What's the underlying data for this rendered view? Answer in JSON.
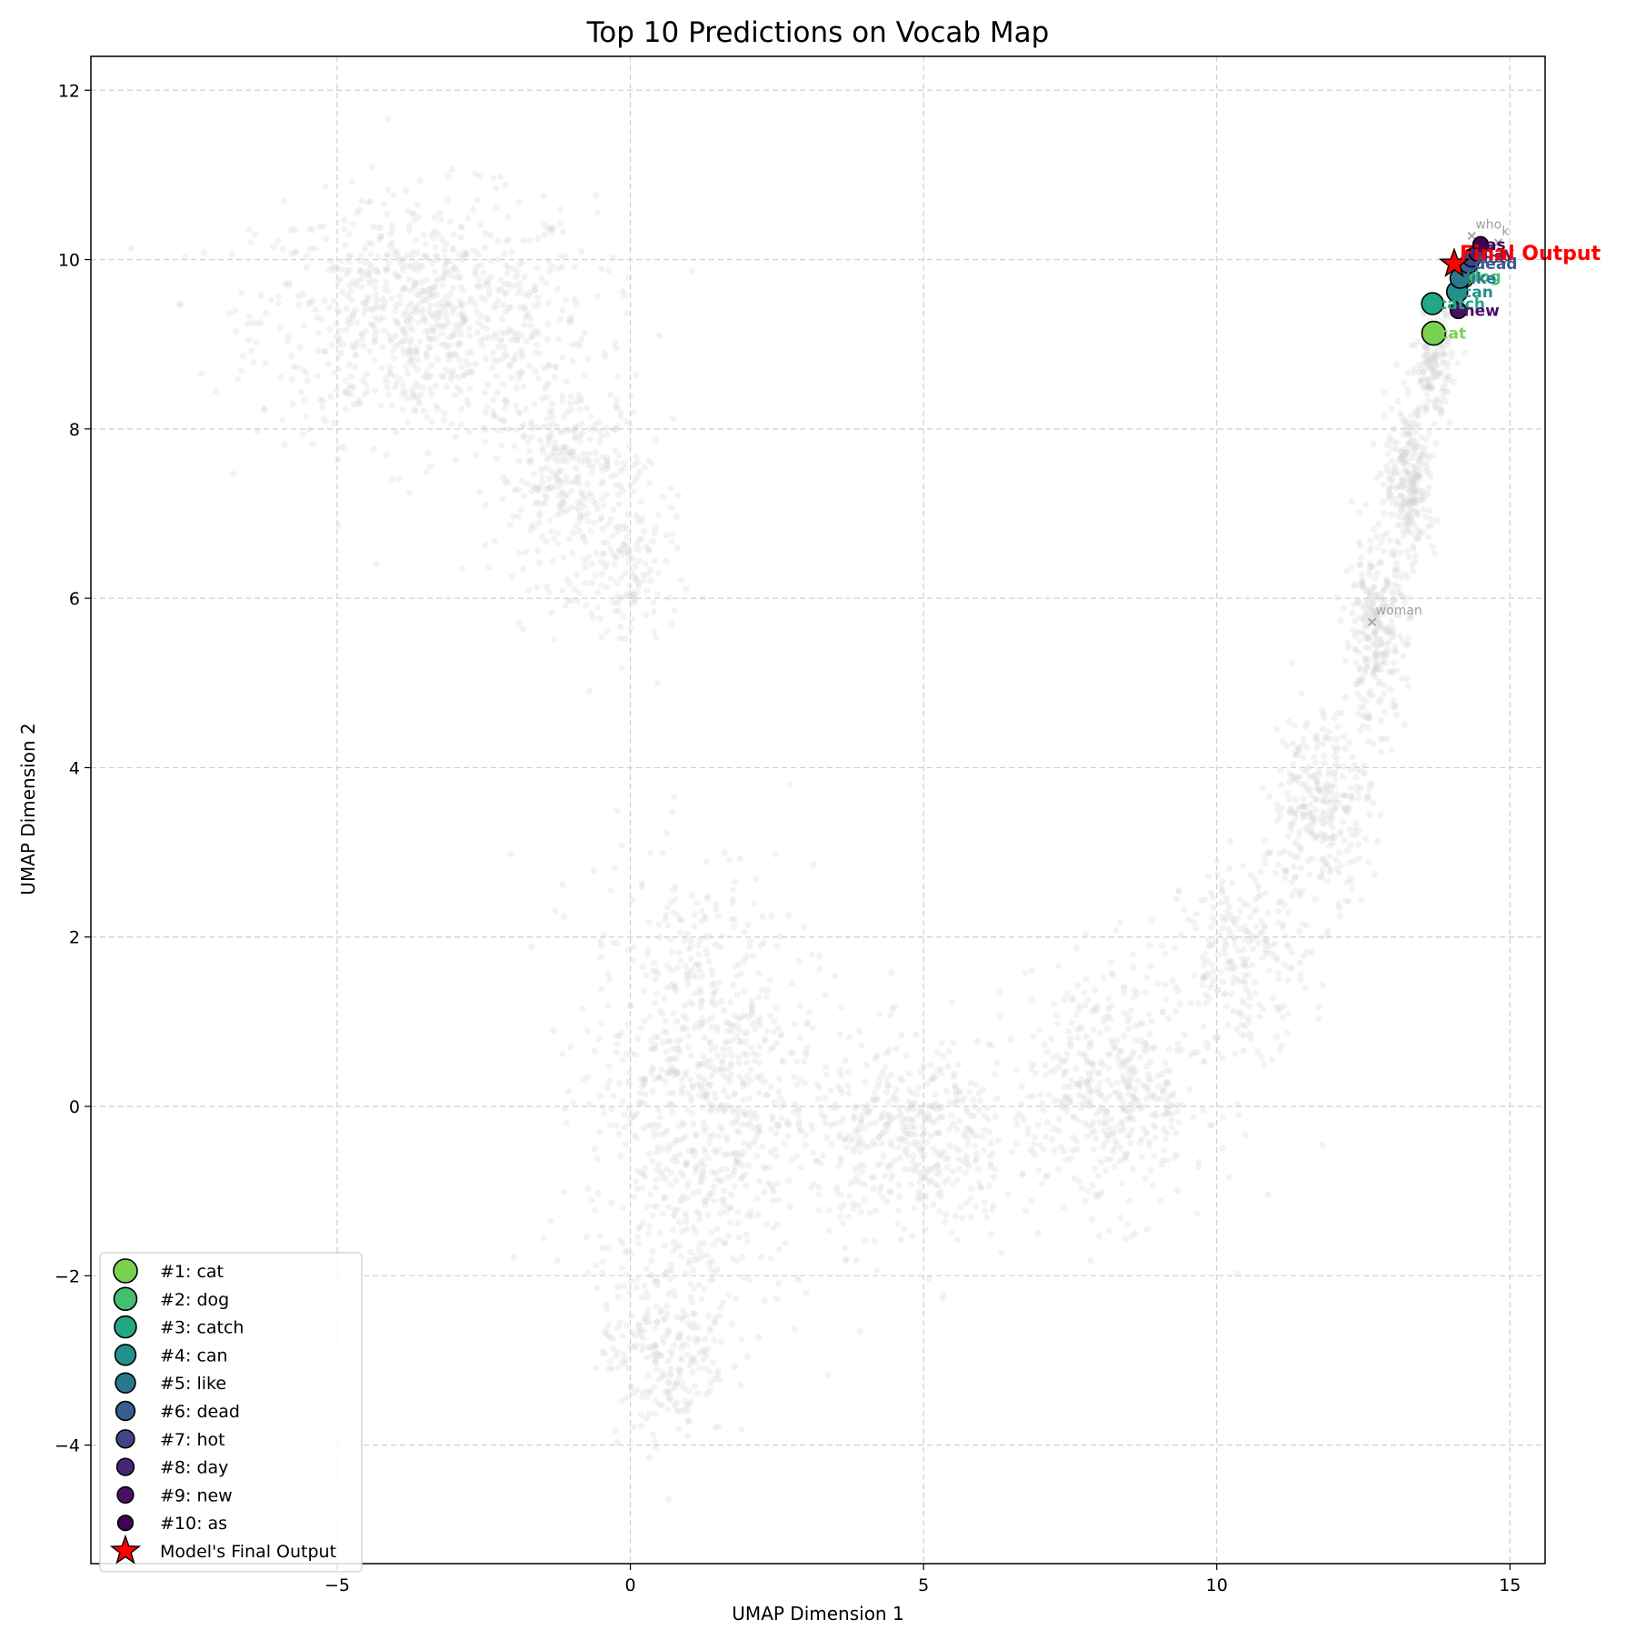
{
  "chart_data": {
    "type": "scatter",
    "title": "Top 10 Predictions on Vocab Map",
    "xlabel": "UMAP Dimension 1",
    "ylabel": "UMAP Dimension 2",
    "xlim": [
      -9.2,
      15.6
    ],
    "ylim": [
      -5.4,
      12.4
    ],
    "x_ticks": [
      -5,
      0,
      5,
      10,
      15
    ],
    "y_ticks": [
      -4,
      -2,
      0,
      2,
      4,
      6,
      8,
      10,
      12
    ],
    "grid": true,
    "legend_position": "lower left",
    "background_cloud_color": "#d3d3d3",
    "predictions": [
      {
        "rank": 1,
        "label": "#1: cat",
        "word": "cat",
        "x": 13.7,
        "y": 9.13,
        "color": "#7ad151",
        "size": 1.0
      },
      {
        "rank": 2,
        "label": "#2: dog",
        "word": "dog",
        "x": 14.2,
        "y": 9.8,
        "color": "#44bf70",
        "size": 0.96
      },
      {
        "rank": 3,
        "label": "#3: catch",
        "word": "catch",
        "x": 13.68,
        "y": 9.48,
        "color": "#22a884",
        "size": 0.92
      },
      {
        "rank": 4,
        "label": "#4: can",
        "word": "can",
        "x": 14.1,
        "y": 9.62,
        "color": "#21918c",
        "size": 0.88
      },
      {
        "rank": 5,
        "label": "#5: like",
        "word": "like",
        "x": 14.15,
        "y": 9.78,
        "color": "#2a788e",
        "size": 0.84
      },
      {
        "rank": 6,
        "label": "#6: dead",
        "word": "dead",
        "x": 14.3,
        "y": 9.95,
        "color": "#355f8d",
        "size": 0.8
      },
      {
        "rank": 7,
        "label": "#7: hot",
        "word": "hot",
        "x": 14.35,
        "y": 10.02,
        "color": "#414487",
        "size": 0.76
      },
      {
        "rank": 8,
        "label": "#8: day",
        "word": "day",
        "x": 14.45,
        "y": 10.08,
        "color": "#482475",
        "size": 0.72
      },
      {
        "rank": 9,
        "label": "#9: new",
        "word": "new",
        "x": 14.12,
        "y": 9.4,
        "color": "#471063",
        "size": 0.68
      },
      {
        "rank": 10,
        "label": "#10: as",
        "word": "as",
        "x": 14.5,
        "y": 10.18,
        "color": "#440154",
        "size": 0.64
      }
    ],
    "final_output": {
      "label": "Model's Final Output",
      "annotation": "Final Output",
      "x": 14.05,
      "y": 9.95,
      "color": "#ff0000"
    },
    "reference_words": [
      {
        "word": "woman",
        "x": 12.65,
        "y": 5.72
      },
      {
        "word": "who",
        "x": 14.35,
        "y": 10.28
      },
      {
        "word": "k",
        "x": 14.8,
        "y": 10.2
      }
    ]
  }
}
